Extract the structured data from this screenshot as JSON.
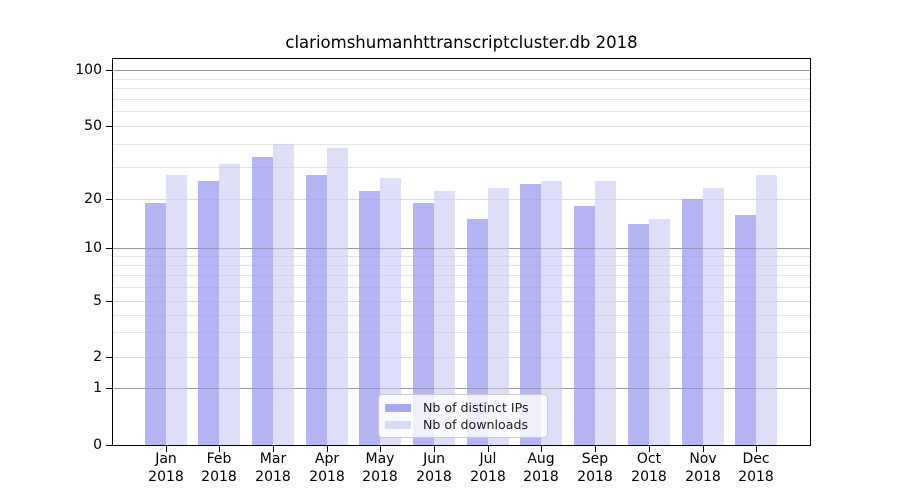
{
  "title": "clariomshumanhttranscriptcluster.db 2018",
  "chart_data": {
    "type": "bar",
    "title": "clariomshumanhttranscriptcluster.db 2018",
    "categories": [
      "Jan 2018",
      "Feb 2018",
      "Mar 2018",
      "Apr 2018",
      "May 2018",
      "Jun 2018",
      "Jul 2018",
      "Aug 2018",
      "Sep 2018",
      "Oct 2018",
      "Nov 2018",
      "Dec 2018"
    ],
    "x_tick_months": [
      "Jan",
      "Feb",
      "Mar",
      "Apr",
      "May",
      "Jun",
      "Jul",
      "Aug",
      "Sep",
      "Oct",
      "Nov",
      "Dec"
    ],
    "x_tick_year": "2018",
    "series": [
      {
        "name": "Nb of distinct IPs",
        "color": "#a8a8f3",
        "values": [
          19,
          25,
          34,
          27,
          22,
          19,
          15,
          24,
          18,
          14,
          20,
          16
        ]
      },
      {
        "name": "Nb of downloads",
        "color": "#d9d9f9",
        "values": [
          27,
          31,
          40,
          38,
          26,
          22,
          23,
          25,
          25,
          15,
          23,
          27
        ]
      }
    ],
    "y_axis": {
      "scale": "symlog",
      "ticks": [
        0,
        1,
        2,
        5,
        10,
        20,
        50,
        100
      ],
      "decade_lines": [
        1,
        10,
        100
      ],
      "minor_gridlines": [
        3,
        4,
        6,
        7,
        8,
        9,
        30,
        40,
        60,
        70,
        80,
        90
      ],
      "range": [
        0,
        100
      ]
    },
    "grid": true,
    "legend_position": "lower center"
  },
  "colors": {
    "bar_dark": "#a8a8f3",
    "bar_light": "#d9d9f9",
    "gridline_decade": "#aaaaaa",
    "gridline_major": "#e4e4e4",
    "gridline_minor": "#ececec",
    "axis": "#000000",
    "legend_border": "#c9c9c9"
  }
}
